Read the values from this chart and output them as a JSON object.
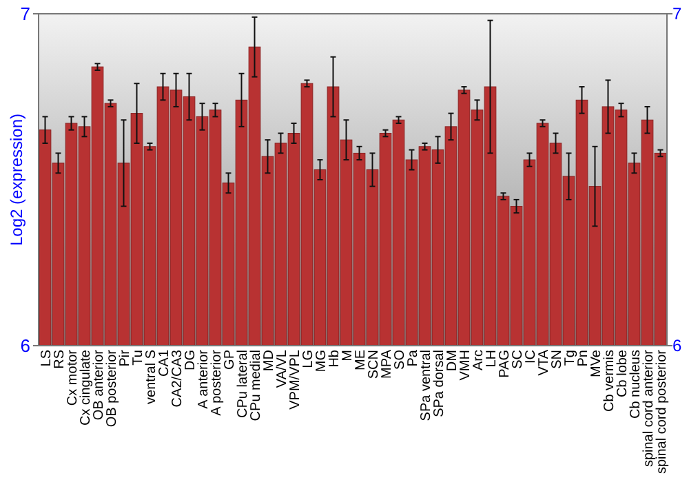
{
  "chart_data": {
    "type": "bar",
    "ylabel": "Log2 (expression)",
    "categories": [
      "LS",
      "RS",
      "Cx motor",
      "Cx cingulate",
      "OB anterior",
      "OB posterior",
      "Pir",
      "Tu",
      "ventral S",
      "CA1",
      "CA2/CA3",
      "DG",
      "A anterior",
      "A posterior",
      "GP",
      "CPu lateral",
      "CPu medial",
      "MD",
      "VA/VL",
      "VPM/VPL",
      "LG",
      "MG",
      "Hb",
      "M",
      "ME",
      "SCN",
      "MPA",
      "SO",
      "Pa",
      "SPa ventral",
      "SPa dorsal",
      "DM",
      "VMH",
      "Arc",
      "LH",
      "PAG",
      "SC",
      "IC",
      "VTA",
      "SN",
      "Tg",
      "Pn",
      "MVe",
      "Cb vermis",
      "Cb lobe",
      "Cb nucleus",
      "spinal cord anterior",
      "spinal cord posterior"
    ],
    "values": [
      6.65,
      6.55,
      6.67,
      6.66,
      6.84,
      6.73,
      6.55,
      6.7,
      6.6,
      6.78,
      6.77,
      6.75,
      6.69,
      6.71,
      6.49,
      6.74,
      6.9,
      6.57,
      6.61,
      6.64,
      6.79,
      6.53,
      6.78,
      6.62,
      6.58,
      6.53,
      6.64,
      6.68,
      6.56,
      6.6,
      6.59,
      6.66,
      6.77,
      6.71,
      6.78,
      6.45,
      6.42,
      6.56,
      6.67,
      6.61,
      6.51,
      6.74,
      6.48,
      6.72,
      6.71,
      6.55,
      6.68,
      6.58
    ],
    "errors": [
      0.04,
      0.03,
      0.02,
      0.03,
      0.01,
      0.01,
      0.13,
      0.09,
      0.01,
      0.04,
      0.05,
      0.07,
      0.04,
      0.02,
      0.03,
      0.08,
      0.09,
      0.05,
      0.03,
      0.03,
      0.01,
      0.03,
      0.09,
      0.06,
      0.02,
      0.05,
      0.01,
      0.01,
      0.03,
      0.01,
      0.04,
      0.04,
      0.01,
      0.03,
      0.2,
      0.01,
      0.02,
      0.02,
      0.01,
      0.03,
      0.07,
      0.04,
      0.12,
      0.08,
      0.02,
      0.03,
      0.04,
      0.01
    ],
    "color": "#b83232",
    "ylim": [
      6,
      7
    ],
    "yticks": [
      6,
      7
    ],
    "y2lim": [
      6,
      7
    ],
    "y2ticks": [
      6,
      7
    ]
  }
}
